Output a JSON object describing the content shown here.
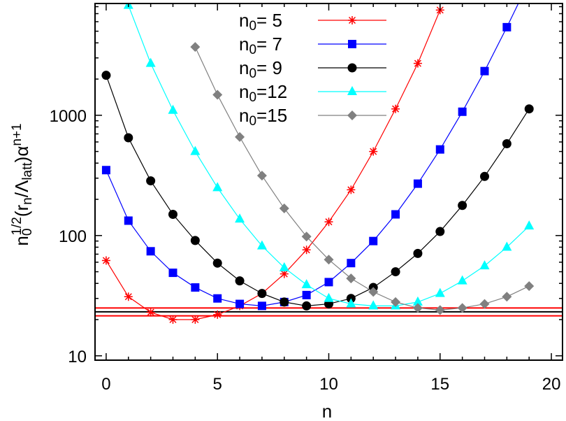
{
  "chart_data": {
    "type": "line",
    "xlabel": "n",
    "ylabel_parts": {
      "n": "n",
      "n_sub": "0",
      "n_sup": "1/2",
      "open": "(r",
      "r_sub": "n",
      "slash": "/Λ",
      "l_sub": "latt",
      "close": ")α",
      "a_sup": "n+1"
    },
    "x_ticks": [
      "0",
      "5",
      "10",
      "15",
      "20"
    ],
    "y_ticks": [
      "10",
      "100",
      "1000"
    ],
    "xlim": [
      -0.5,
      20.5
    ],
    "ylim": [
      9.2,
      8500
    ],
    "y_scale": "log",
    "legend_position": "top-center",
    "series": [
      {
        "name": "n0= 5",
        "label_main": "n",
        "label_sub": "0",
        "label_rest": "=  5",
        "color": "#ff0000",
        "marker": "star",
        "x": [
          0,
          1,
          2,
          3,
          4,
          5,
          6,
          7,
          8,
          9,
          10,
          11,
          12,
          13,
          14,
          15
        ],
        "y": [
          62,
          31,
          23,
          20,
          20,
          22,
          26,
          33,
          48,
          76,
          130,
          240,
          500,
          1130,
          2700,
          7500
        ]
      },
      {
        "name": "n0= 7",
        "label_main": "n",
        "label_sub": "0",
        "label_rest": "=  7",
        "color": "#0000ff",
        "marker": "square",
        "x": [
          0,
          1,
          2,
          3,
          4,
          5,
          6,
          7,
          8,
          9,
          10,
          11,
          12,
          13,
          14,
          15,
          16,
          17,
          18,
          19
        ],
        "y": [
          350,
          133,
          74,
          49,
          37,
          30,
          27,
          26,
          28,
          32,
          41,
          59,
          90,
          150,
          270,
          520,
          1070,
          2330,
          5400,
          13000
        ]
      },
      {
        "name": "n0= 9",
        "label_main": "n",
        "label_sub": "0",
        "label_rest": "=  9",
        "color": "#000000",
        "marker": "circle",
        "x": [
          0,
          1,
          2,
          3,
          4,
          5,
          6,
          7,
          8,
          9,
          10,
          11,
          12,
          13,
          14,
          15,
          16,
          17,
          18,
          19
        ],
        "y": [
          2150,
          650,
          285,
          150,
          91,
          59,
          42,
          33,
          28,
          26,
          27,
          30,
          37,
          50,
          71,
          108,
          178,
          310,
          580,
          1130
        ]
      },
      {
        "name": "n0=12",
        "label_main": "n",
        "label_sub": "0",
        "label_rest": "=12",
        "color": "#00ffff",
        "marker": "triangle",
        "x": [
          1,
          2,
          3,
          4,
          5,
          6,
          7,
          8,
          9,
          10,
          11,
          12,
          13,
          14,
          15,
          16,
          17,
          18,
          19
        ],
        "y": [
          8200,
          2700,
          1100,
          500,
          250,
          137,
          82,
          54,
          39,
          30,
          27,
          26,
          26,
          28,
          33,
          42,
          56,
          80,
          120
        ]
      },
      {
        "name": "n0=15",
        "label_main": "n",
        "label_sub": "0",
        "label_rest": "=15",
        "color": "#808080",
        "marker": "diamond",
        "x": [
          4,
          5,
          6,
          7,
          8,
          9,
          10,
          11,
          12,
          13,
          14,
          15,
          16,
          17,
          18,
          19
        ],
        "y": [
          3700,
          1480,
          660,
          315,
          168,
          98,
          63,
          44,
          34,
          28,
          25,
          24,
          25,
          27,
          31,
          38
        ]
      }
    ],
    "reference_lines": [
      {
        "y": 25.0,
        "color": "#ff0000"
      },
      {
        "y": 23.2,
        "color": "#000000"
      },
      {
        "y": 21.5,
        "color": "#ff0000"
      }
    ]
  }
}
